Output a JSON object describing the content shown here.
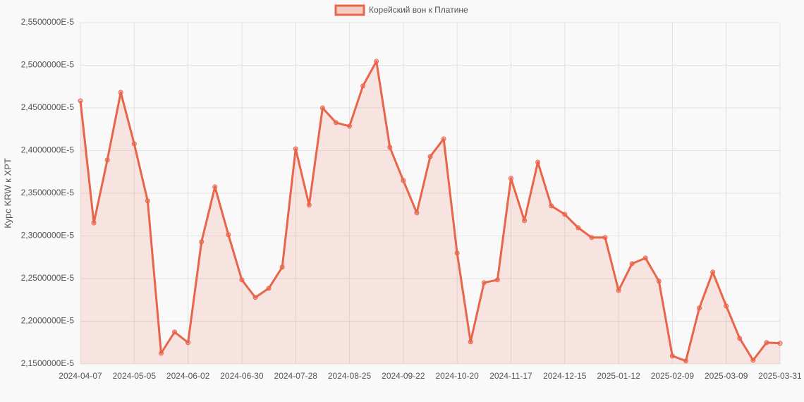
{
  "chart_data": {
    "type": "line",
    "y_label": "Курс KRW к XPT",
    "categories": [
      "2024-04-07",
      null,
      null,
      null,
      "2024-05-05",
      null,
      null,
      null,
      "2024-06-02",
      null,
      null,
      null,
      "2024-06-30",
      null,
      null,
      null,
      "2024-07-28",
      null,
      null,
      null,
      "2024-08-25",
      null,
      null,
      null,
      "2024-09-22",
      null,
      null,
      null,
      "2024-10-20",
      null,
      null,
      null,
      "2024-11-17",
      null,
      null,
      null,
      "2024-12-15",
      null,
      null,
      null,
      "2025-01-12",
      null,
      null,
      null,
      "2025-02-09",
      null,
      null,
      null,
      "2025-03-09",
      null,
      null,
      null,
      "2025-03-31"
    ],
    "series": [
      {
        "name": "Корейский вон к Платине",
        "color": "#e8654a",
        "values": [
          2.4583e-05,
          2.3153e-05,
          2.3889e-05,
          2.4682e-05,
          2.4079e-05,
          2.341e-05,
          2.1626e-05,
          2.1874e-05,
          2.175e-05,
          2.2931e-05,
          2.3575e-05,
          2.3014e-05,
          2.2485e-05,
          2.2279e-05,
          2.2386e-05,
          2.2634e-05,
          2.4021e-05,
          2.3361e-05,
          2.45e-05,
          2.4327e-05,
          2.4286e-05,
          2.4757e-05,
          2.5046e-05,
          2.4038e-05,
          2.365e-05,
          2.327e-05,
          2.393e-05,
          2.4137e-05,
          2.2799e-05,
          2.1758e-05,
          2.2452e-05,
          2.2485e-05,
          2.3675e-05,
          2.3179e-05,
          2.3864e-05,
          2.3352e-05,
          2.3253e-05,
          2.3096e-05,
          2.2981e-05,
          2.2981e-05,
          2.2361e-05,
          2.2675e-05,
          2.2741e-05,
          2.2469e-05,
          2.1593e-05,
          2.1535e-05,
          2.2155e-05,
          2.2576e-05,
          2.2179e-05,
          2.18e-05,
          2.1543e-05,
          2.175e-05,
          2.1742e-05
        ]
      }
    ],
    "ylim": [
      2.15e-05,
      2.55e-05
    ],
    "yticks": [
      {
        "value": 2.15e-05,
        "label": "2,1500000E-5"
      },
      {
        "value": 2.2e-05,
        "label": "2,2000000E-5"
      },
      {
        "value": 2.25e-05,
        "label": "2,2500000E-5"
      },
      {
        "value": 2.3e-05,
        "label": "2,3000000E-5"
      },
      {
        "value": 2.35e-05,
        "label": "2,3500000E-5"
      },
      {
        "value": 2.4e-05,
        "label": "2,4000000E-5"
      },
      {
        "value": 2.45e-05,
        "label": "2,4500000E-5"
      },
      {
        "value": 2.5e-05,
        "label": "2,5000000E-5"
      },
      {
        "value": 2.55e-05,
        "label": "2,5500000E-5"
      }
    ],
    "grid": true,
    "legend": "top"
  }
}
